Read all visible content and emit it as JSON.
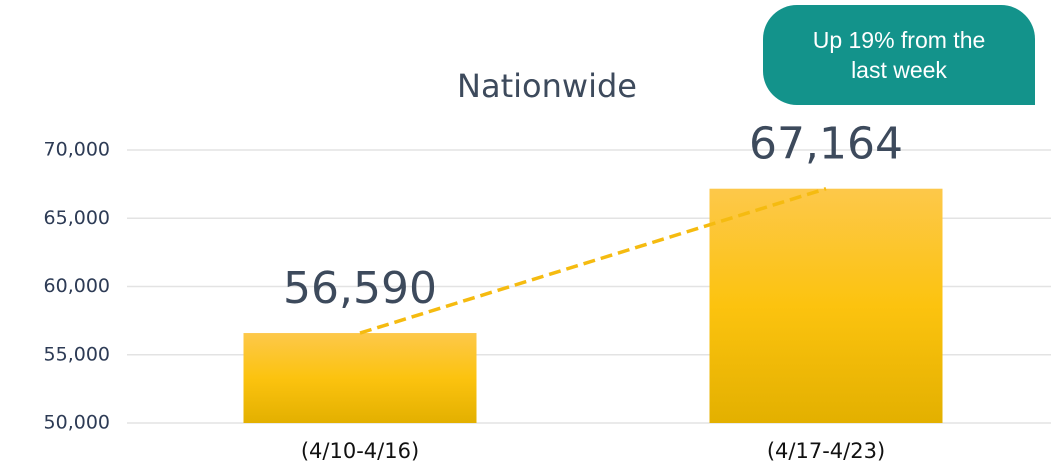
{
  "chart_data": {
    "type": "bar",
    "title": "Nationwide",
    "categories": [
      "(4/10-4/16)",
      "(4/17-4/23)"
    ],
    "values": [
      56590,
      67164
    ],
    "value_labels": [
      "56,590",
      "67,164"
    ],
    "color": "#fcc419",
    "ylim": [
      50000,
      70000
    ],
    "yticks": [
      {
        "value": 50000,
        "label": "50,000"
      },
      {
        "value": 55000,
        "label": "55,000"
      },
      {
        "value": 60000,
        "label": "60,000"
      },
      {
        "value": 65000,
        "label": "65,000"
      },
      {
        "value": 70000,
        "label": "70,000"
      }
    ],
    "grid": true,
    "annotation": "Up 19% from the last week"
  }
}
